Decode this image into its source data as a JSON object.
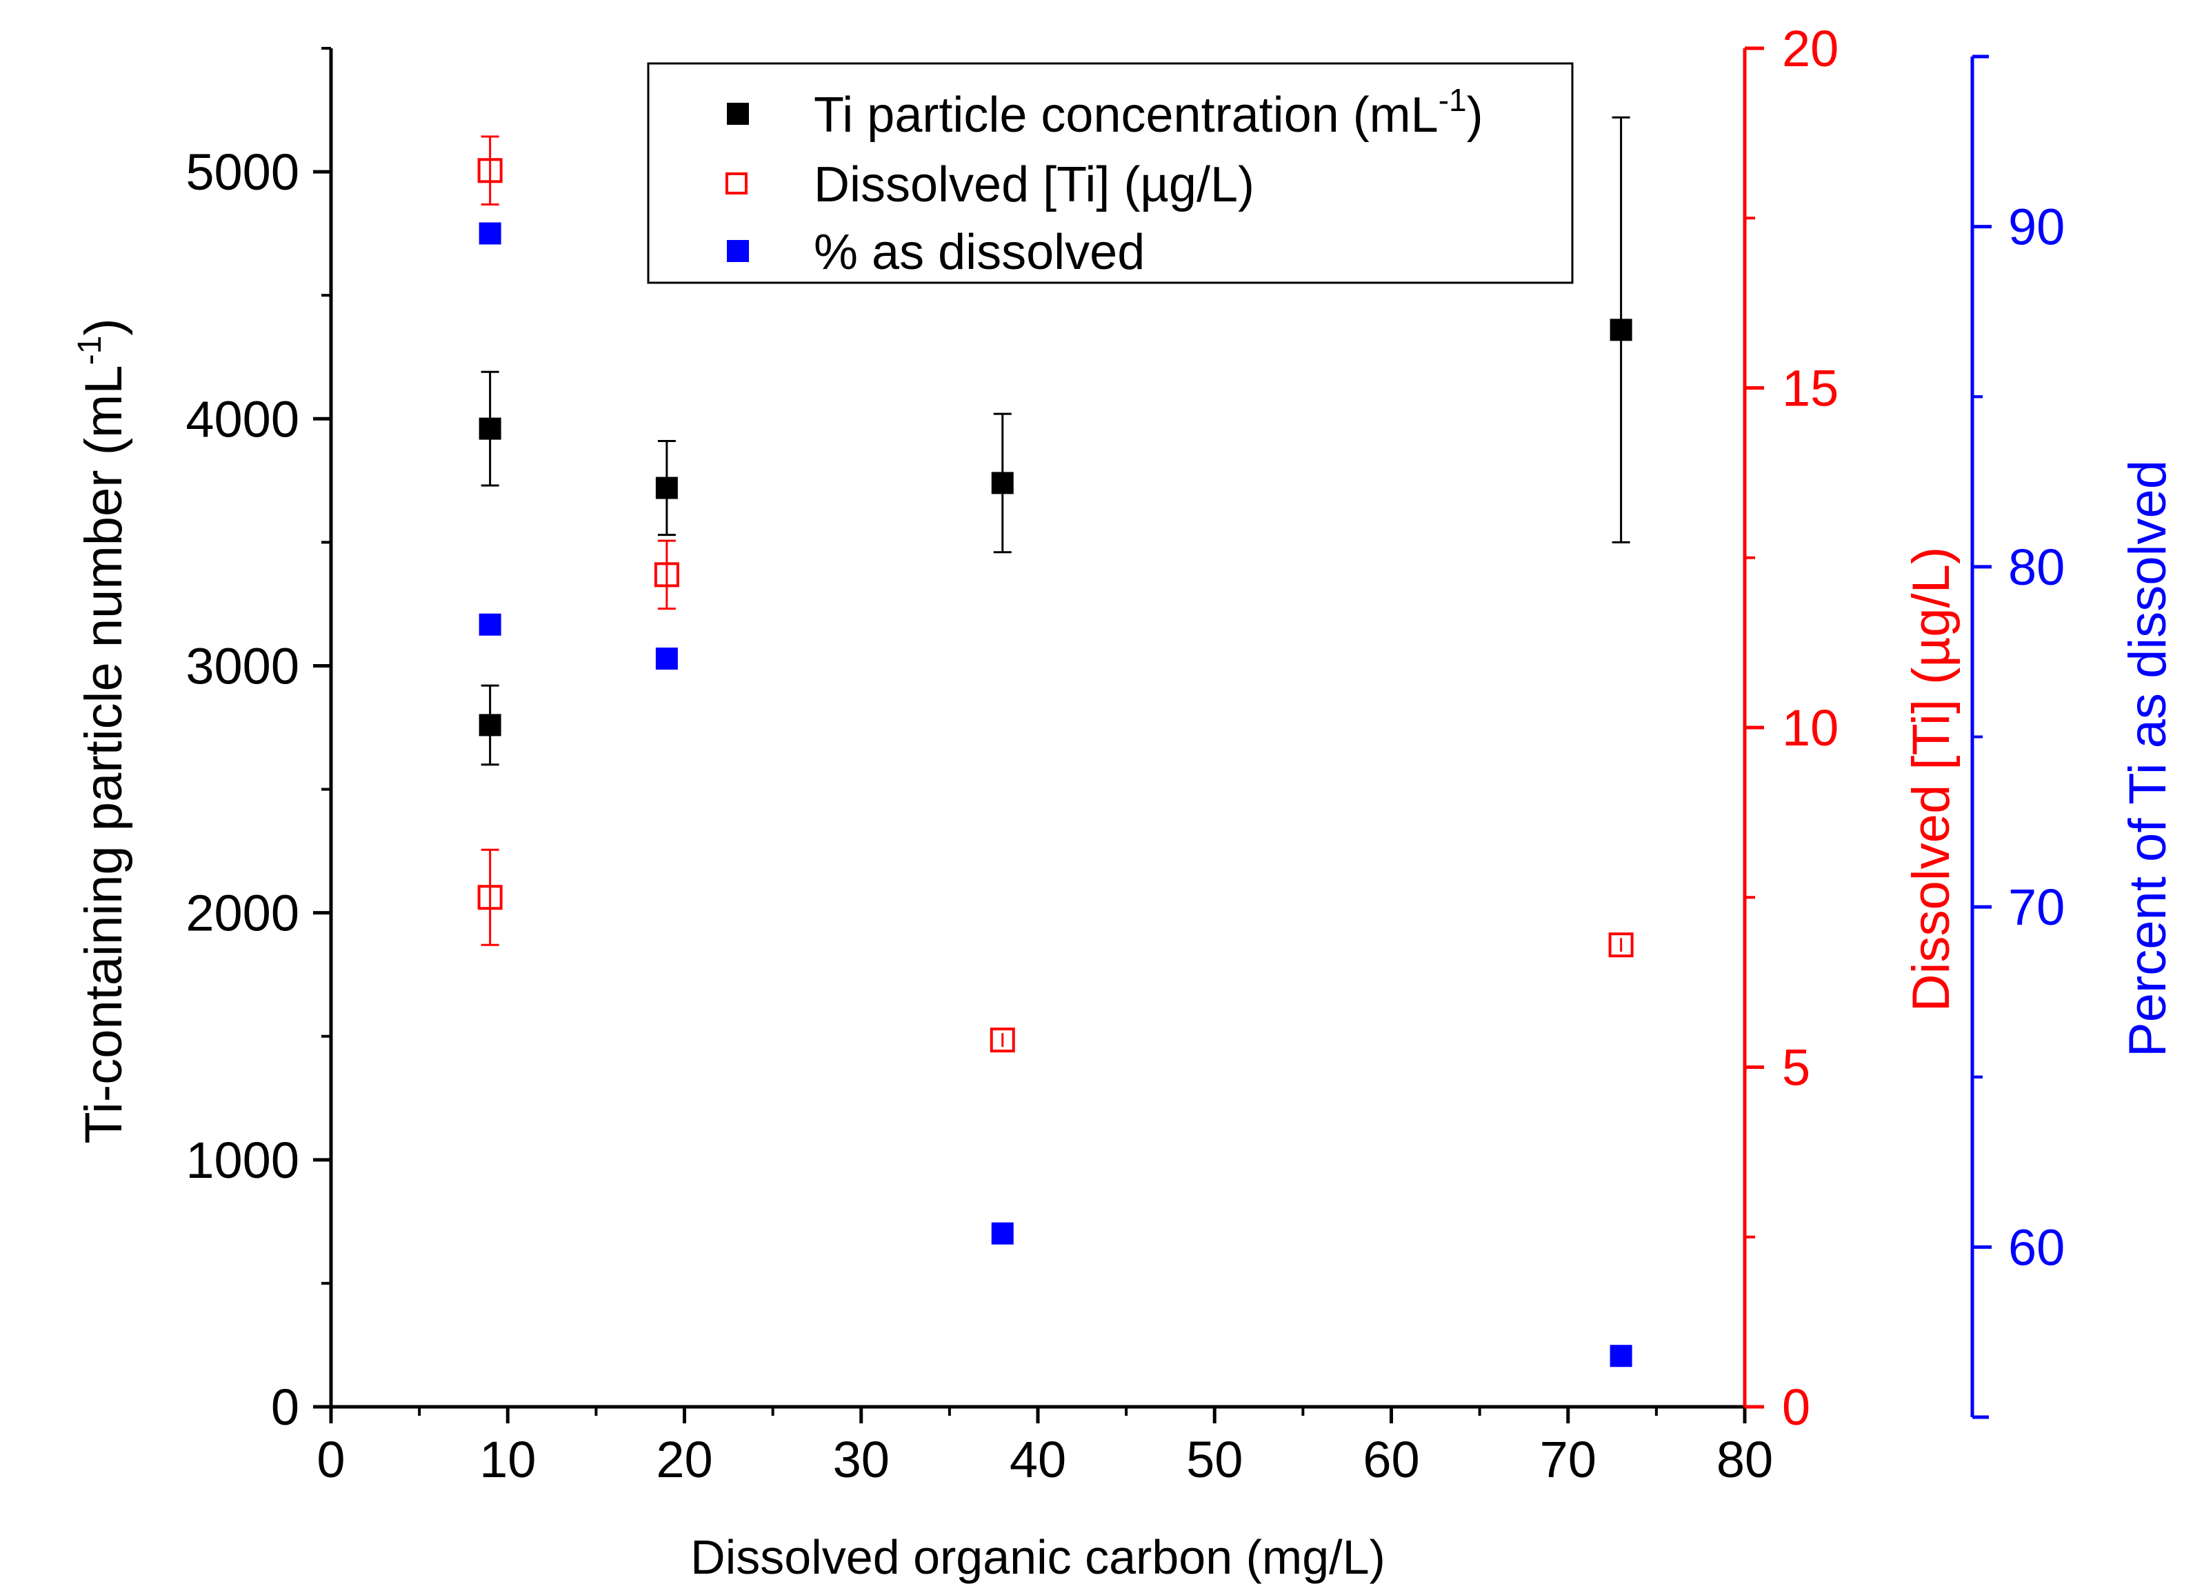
{
  "chart_data": {
    "type": "scatter",
    "xlabel": "Dissolved organic carbon (mg/L)",
    "xlim": [
      0,
      80
    ],
    "x_ticks": [
      "0",
      "10",
      "20",
      "30",
      "40",
      "50",
      "60",
      "70",
      "80"
    ],
    "axes": {
      "left": {
        "label": "Ti-containing particle number (mL",
        "label_sup": "-1",
        "label_end": ")",
        "ylim": [
          0,
          5500
        ],
        "ticks": [
          "0",
          "1000",
          "2000",
          "3000",
          "4000",
          "5000"
        ],
        "color": "#000000"
      },
      "right_red": {
        "label": "Dissolved [Ti] (µg/L)",
        "ylim": [
          0,
          20
        ],
        "ticks": [
          "0",
          "5",
          "10",
          "15",
          "20"
        ],
        "color": "#ff0000"
      },
      "right_blue": {
        "label": "Percent of Ti as dissolved",
        "ylim": [
          55,
          95
        ],
        "ticks": [
          "60",
          "70",
          "80",
          "90"
        ],
        "color": "#0000ff"
      }
    },
    "legend": {
      "position": "top-center",
      "entries": [
        {
          "text": "Ti particle concentration (mL",
          "sup": "-1",
          "tail": ")",
          "marker": "filled-square",
          "color": "#000000"
        },
        {
          "text": "Dissolved [Ti] (µg/L)",
          "sup": "",
          "tail": "",
          "marker": "open-square",
          "color": "#ff0000"
        },
        {
          "text": "% as dissolved",
          "sup": "",
          "tail": "",
          "marker": "filled-square",
          "color": "#0000ff"
        }
      ]
    },
    "series": [
      {
        "name": "Ti particle concentration (mL-1)",
        "axis": "left",
        "marker": "filled-square",
        "color": "#000000",
        "points": [
          {
            "x": 9,
            "y": 3960,
            "err": 230
          },
          {
            "x": 9,
            "y": 2760,
            "err": 160
          },
          {
            "x": 19,
            "y": 3720,
            "err": 190
          },
          {
            "x": 38,
            "y": 3740,
            "err": 280
          },
          {
            "x": 73,
            "y": 4360,
            "err": 860
          }
        ]
      },
      {
        "name": "Dissolved [Ti] (µg/L)",
        "axis": "right_red",
        "marker": "open-square",
        "color": "#ff0000",
        "points": [
          {
            "x": 9,
            "y": 18.2,
            "err": 0.5
          },
          {
            "x": 9,
            "y": 7.5,
            "err": 0.7
          },
          {
            "x": 19,
            "y": 12.25,
            "err": 0.5
          },
          {
            "x": 38,
            "y": 5.4,
            "err": 0.1
          },
          {
            "x": 73,
            "y": 6.8,
            "err": 0.1
          }
        ]
      },
      {
        "name": "% as dissolved",
        "axis": "right_blue",
        "marker": "filled-square",
        "color": "#0000ff",
        "points": [
          {
            "x": 9,
            "y": 89.8
          },
          {
            "x": 9,
            "y": 78.3
          },
          {
            "x": 19,
            "y": 77.3
          },
          {
            "x": 38,
            "y": 60.4
          },
          {
            "x": 73,
            "y": 56.8
          }
        ]
      }
    ]
  }
}
